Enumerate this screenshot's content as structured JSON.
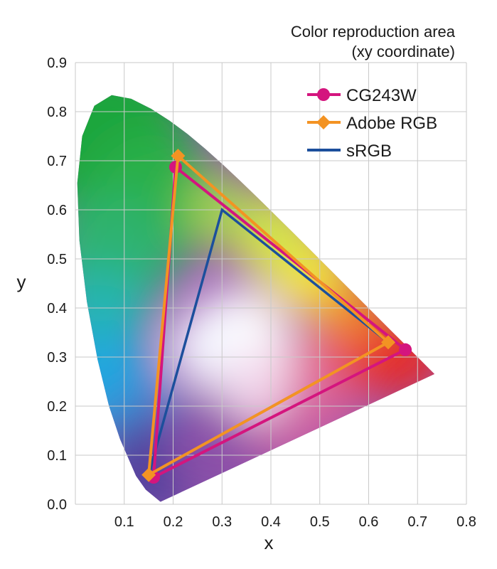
{
  "chart_data": {
    "type": "scatter",
    "title": "Color reproduction area",
    "subtitle": "(xy coordinate)",
    "xlabel": "x",
    "ylabel": "y",
    "xlim": [
      0.0,
      0.8
    ],
    "ylim": [
      0.0,
      0.9
    ],
    "x_ticks": [
      "0.1",
      "0.2",
      "0.3",
      "0.4",
      "0.5",
      "0.6",
      "0.7",
      "0.8"
    ],
    "y_ticks": [
      "0.0",
      "0.1",
      "0.2",
      "0.3",
      "0.4",
      "0.5",
      "0.6",
      "0.7",
      "0.8",
      "0.9"
    ],
    "grid": true,
    "legend_position": "top-right",
    "series": [
      {
        "name": "CG243W",
        "color": "#d4157e",
        "marker": "circle",
        "points": [
          [
            0.675,
            0.315
          ],
          [
            0.205,
            0.687
          ],
          [
            0.16,
            0.055
          ]
        ]
      },
      {
        "name": "Adobe RGB",
        "color": "#f39323",
        "marker": "diamond",
        "points": [
          [
            0.64,
            0.33
          ],
          [
            0.21,
            0.71
          ],
          [
            0.15,
            0.06
          ]
        ]
      },
      {
        "name": "sRGB",
        "color": "#1c4f9c",
        "marker": "none",
        "points": [
          [
            0.64,
            0.33
          ],
          [
            0.3,
            0.6
          ],
          [
            0.15,
            0.06
          ]
        ]
      }
    ],
    "spectral_locus": [
      [
        0.1741,
        0.005
      ],
      [
        0.144,
        0.0297
      ],
      [
        0.1241,
        0.0578
      ],
      [
        0.0913,
        0.1327
      ],
      [
        0.0687,
        0.2007
      ],
      [
        0.0454,
        0.295
      ],
      [
        0.0235,
        0.4127
      ],
      [
        0.0082,
        0.5384
      ],
      [
        0.0039,
        0.6548
      ],
      [
        0.0139,
        0.7502
      ],
      [
        0.0389,
        0.812
      ],
      [
        0.0743,
        0.8338
      ],
      [
        0.1142,
        0.8262
      ],
      [
        0.1547,
        0.8059
      ],
      [
        0.1929,
        0.7816
      ],
      [
        0.2296,
        0.7543
      ],
      [
        0.2658,
        0.7243
      ],
      [
        0.3016,
        0.6923
      ],
      [
        0.3373,
        0.6589
      ],
      [
        0.3731,
        0.6245
      ],
      [
        0.4087,
        0.5896
      ],
      [
        0.4441,
        0.5547
      ],
      [
        0.4788,
        0.5202
      ],
      [
        0.5125,
        0.4866
      ],
      [
        0.5448,
        0.4544
      ],
      [
        0.5752,
        0.4242
      ],
      [
        0.6029,
        0.3965
      ],
      [
        0.627,
        0.3725
      ],
      [
        0.6482,
        0.3514
      ],
      [
        0.6658,
        0.334
      ],
      [
        0.6801,
        0.3197
      ],
      [
        0.6915,
        0.3083
      ],
      [
        0.7006,
        0.2993
      ],
      [
        0.714,
        0.2859
      ],
      [
        0.7347,
        0.2653
      ]
    ]
  }
}
